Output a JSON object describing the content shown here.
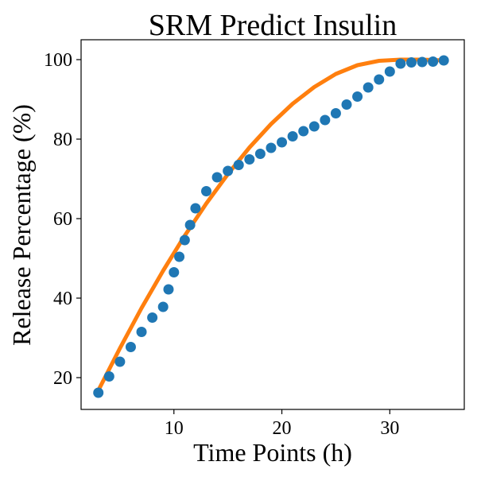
{
  "chart_data": {
    "type": "scatter",
    "title": "SRM Predict Insulin",
    "xlabel": "Time Points (h)",
    "ylabel": "Release Percentage (%)",
    "xlim": [
      1.4,
      36.9
    ],
    "ylim": [
      12,
      105
    ],
    "xticks": [
      10,
      20,
      30
    ],
    "yticks": [
      20,
      40,
      60,
      80,
      100
    ],
    "grid": false,
    "legend": "none",
    "series": [
      {
        "kind": "scatter",
        "color": "#1f77b4",
        "x": [
          3.0,
          4.0,
          5.0,
          6.0,
          7.0,
          8.0,
          9.0,
          9.5,
          10.0,
          10.5,
          11.0,
          11.5,
          12.0,
          13.0,
          14.0,
          15.0,
          16.0,
          17.0,
          18.0,
          19.0,
          20.0,
          21.0,
          22.0,
          23.0,
          24.0,
          25.0,
          26.0,
          27.0,
          28.0,
          29.0,
          30.0,
          31.0,
          32.0,
          33.0,
          34.0,
          35.0
        ],
        "y": [
          16.2,
          20.3,
          24.0,
          27.7,
          31.5,
          35.1,
          37.8,
          42.2,
          46.5,
          50.4,
          54.6,
          58.4,
          62.6,
          66.9,
          70.4,
          72.0,
          73.5,
          74.9,
          76.3,
          77.8,
          79.2,
          80.7,
          82.0,
          83.2,
          84.8,
          86.5,
          88.7,
          90.7,
          93.0,
          95.0,
          97.0,
          99.0,
          99.3,
          99.4,
          99.5,
          99.8
        ]
      },
      {
        "kind": "line",
        "color": "#ff7f0e",
        "x": [
          3.0,
          5.0,
          7.0,
          9.0,
          11.0,
          13.0,
          15.0,
          17.0,
          19.0,
          21.0,
          23.0,
          25.0,
          27.0,
          29.0,
          31.0,
          33.0,
          35.0
        ],
        "y": [
          16.8,
          27.4,
          37.5,
          46.9,
          55.7,
          63.8,
          71.2,
          77.9,
          83.8,
          88.9,
          93.1,
          96.4,
          98.6,
          99.7,
          100.0,
          100.0,
          99.8
        ]
      }
    ]
  }
}
